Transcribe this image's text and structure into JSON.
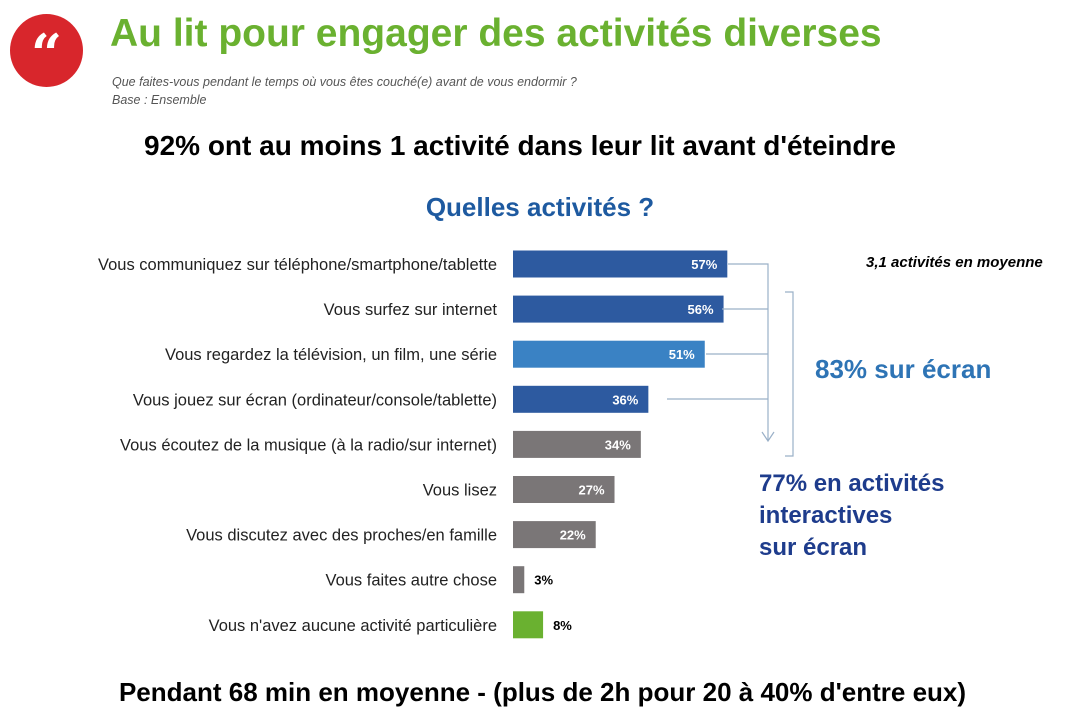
{
  "header": {
    "logo_glyph": "“",
    "title": "Au lit pour engager des activités diverses",
    "question": "Que faites-vous pendant le temps où vous êtes couché(e) avant de vous endormir ?",
    "base": "Base : Ensemble"
  },
  "headline": "92% ont au moins 1 activité dans leur lit avant d'éteindre",
  "annotations": {
    "average": "3,1 activités en moyenne",
    "screen": "83% sur écran",
    "interactive_lines": [
      "77% en activités",
      "interactives",
      "sur écran"
    ]
  },
  "footer": "Pendant 68 min en moyenne - (plus de 2h pour 20 à 40% d'entre eux)",
  "colors": {
    "title_green": "#6ab130",
    "logo_red": "#d8262c",
    "bar_dark_blue": "#2d5aa0",
    "bar_light_blue": "#3a82c4",
    "bar_gray": "#7a7677",
    "bar_green": "#6ab130",
    "chart_title_blue": "#1e5aa0"
  },
  "chart_data": {
    "type": "bar",
    "orientation": "horizontal",
    "title": "Quelles activités ?",
    "categories": [
      "Vous communiquez sur téléphone/smartphone/tablette",
      "Vous surfez sur internet",
      "Vous regardez la télévision, un film, une série",
      "Vous jouez sur écran (ordinateur/console/tablette)",
      "Vous écoutez de la musique (à la radio/sur internet)",
      "Vous lisez",
      "Vous discutez avec des proches/en famille",
      "Vous faites autre chose",
      "Vous n'avez aucune activité particulière"
    ],
    "values": [
      57,
      56,
      51,
      36,
      34,
      27,
      22,
      3,
      8
    ],
    "value_labels": [
      "57%",
      "56%",
      "51%",
      "36%",
      "34%",
      "27%",
      "22%",
      "3%",
      "8%"
    ],
    "bar_colors": [
      "#2d5aa0",
      "#2d5aa0",
      "#3a82c4",
      "#2d5aa0",
      "#7a7677",
      "#7a7677",
      "#7a7677",
      "#7a7677",
      "#6ab130"
    ],
    "xlim": [
      0,
      100
    ],
    "grid": false,
    "legend": false
  }
}
